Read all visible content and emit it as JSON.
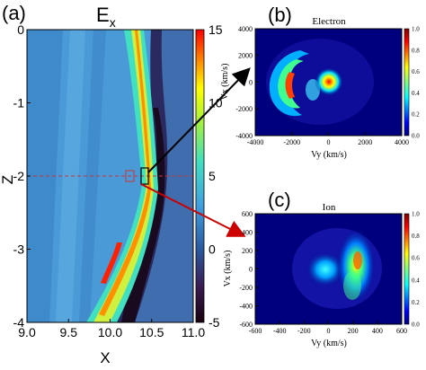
{
  "panels": {
    "a": {
      "panel_label": "(a)",
      "title_main": "E",
      "title_sub": "x",
      "xlabel": "X",
      "ylabel": "Z",
      "xticks": [
        "9.0",
        "9.5",
        "10.0",
        "10.5",
        "11.0"
      ],
      "yticks": [
        "0",
        "-1",
        "-2",
        "-3",
        "-4"
      ],
      "colorbar_ticks": [
        "15",
        "10",
        "5",
        "0",
        "-5"
      ]
    },
    "b": {
      "panel_label": "(b)",
      "title": "Electron",
      "xlabel": "Vy (km/s)",
      "ylabel": "Vx (km/s)",
      "xticks": [
        "-4000",
        "-2000",
        "0",
        "2000",
        "4000"
      ],
      "yticks": [
        "4000",
        "2000",
        "0",
        "-2000",
        "-4000"
      ],
      "colorbar_ticks": [
        "1.0",
        "0.8",
        "0.6",
        "0.4",
        "0.2",
        "0.0"
      ]
    },
    "c": {
      "panel_label": "(c)",
      "title": "Ion",
      "xlabel": "Vy (km/s)",
      "ylabel": "Vx (km/s)",
      "xticks": [
        "-600",
        "-400",
        "-200",
        "0",
        "200",
        "400",
        "600"
      ],
      "yticks": [
        "600",
        "400",
        "200",
        "0",
        "-200",
        "-400",
        "-600"
      ],
      "colorbar_ticks": [
        "1.0",
        "0.8",
        "0.6",
        "0.4",
        "0.2",
        "0.0"
      ]
    }
  },
  "chart_data": [
    {
      "type": "heatmap",
      "panel": "(a)",
      "variable": "Ex",
      "xlim": [
        9.0,
        11.0
      ],
      "ylim": [
        -4,
        0
      ],
      "colorbar_range": [
        -5,
        15
      ],
      "current_sheet_center_x": [
        [
          0,
          10.0
        ],
        [
          -1,
          10.12
        ],
        [
          -2,
          10.22
        ],
        [
          -3,
          10.05
        ],
        [
          -4,
          9.62
        ]
      ],
      "selected_region": {
        "x": [
          10.22,
          10.32
        ],
        "z": [
          -1.9,
          -2.15
        ]
      },
      "reference_line_z": -2
    },
    {
      "type": "heatmap",
      "panel": "(b)",
      "species": "Electron",
      "xlim": [
        -4000,
        4000
      ],
      "ylim": [
        -4000,
        4000
      ],
      "colorbar_range": [
        0.0,
        1.0
      ],
      "core_peak": [
        0,
        0
      ],
      "crescent_center_vy": -2800
    },
    {
      "type": "heatmap",
      "panel": "(c)",
      "species": "Ion",
      "xlim": [
        -600,
        600
      ],
      "ylim": [
        -600,
        600
      ],
      "colorbar_range": [
        0.0,
        1.0
      ],
      "core_peak": [
        -50,
        0
      ],
      "beam_center_vy": 220
    }
  ],
  "colors": {
    "arrow_b": "#000000",
    "arrow_c": "#cc0000",
    "dashed_line": "#cc3333",
    "jet": [
      "#00007f",
      "#0000ff",
      "#007fff",
      "#00ffff",
      "#7fff7f",
      "#ffff00",
      "#ff7f00",
      "#ff0000",
      "#7f0000"
    ]
  }
}
